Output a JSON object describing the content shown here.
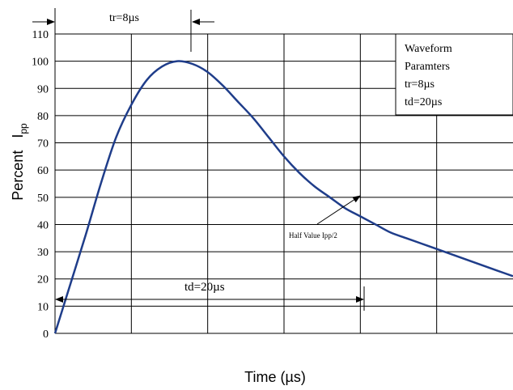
{
  "chart_data": {
    "type": "line",
    "title": "",
    "xlabel": "Time (µs)",
    "ylabel_main": "Percent",
    "ylabel_sym": "I",
    "ylabel_sub": "pp",
    "x_ticks": [],
    "y_ticks": [
      "0",
      "10",
      "20",
      "30",
      "40",
      "50",
      "60",
      "70",
      "80",
      "90",
      "100",
      "110"
    ],
    "ylim": [
      0,
      110
    ],
    "xlim": [
      0,
      30
    ],
    "grid": true,
    "series": [
      {
        "color": "#1f3d8a",
        "x": [
          0,
          1,
          2,
          3,
          4,
          5,
          6,
          7,
          8,
          9,
          10,
          11,
          12,
          13,
          14,
          15,
          16,
          17,
          18,
          19,
          20,
          21,
          22,
          23,
          24,
          25,
          26,
          27,
          28,
          29,
          30
        ],
        "values": [
          0,
          18,
          36,
          55,
          72,
          84,
          93,
          98,
          100,
          99,
          96,
          91,
          85,
          79,
          72,
          65,
          59,
          54,
          50,
          46,
          43,
          40,
          37,
          35,
          33,
          31,
          29,
          27,
          25,
          23,
          21
        ]
      }
    ],
    "annotations": {
      "tr": "tr=8µs",
      "td": "td=20µs",
      "half_value": "Half Value Ipp/2",
      "legend_box": [
        "Waveform",
        "Paramters",
        "tr=8µs",
        "td=20µs"
      ]
    }
  }
}
